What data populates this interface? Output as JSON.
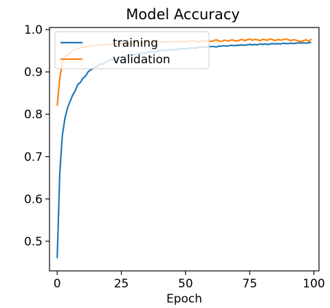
{
  "chart_data": {
    "type": "line",
    "title": "Model Accuracy",
    "xlabel": "Epoch",
    "ylabel": "",
    "xlim": [
      -3,
      102
    ],
    "ylim": [
      0.43,
      1.005
    ],
    "xticks": [
      0,
      25,
      50,
      75,
      100
    ],
    "yticks": [
      0.5,
      0.6,
      0.7,
      0.8,
      0.9,
      1.0
    ],
    "xtick_labels": [
      "0",
      "25",
      "50",
      "75",
      "100"
    ],
    "ytick_labels": [
      "0.5",
      "0.6",
      "0.7",
      "0.8",
      "0.9",
      "1.0"
    ],
    "grid": false,
    "legend_position": "upper-left",
    "x": [
      0,
      1,
      2,
      3,
      4,
      5,
      6,
      7,
      8,
      9,
      10,
      11,
      12,
      13,
      14,
      15,
      16,
      17,
      18,
      19,
      20,
      21,
      22,
      23,
      24,
      25,
      26,
      27,
      28,
      29,
      30,
      31,
      32,
      33,
      34,
      35,
      36,
      37,
      38,
      39,
      40,
      41,
      42,
      43,
      44,
      45,
      46,
      47,
      48,
      49,
      50,
      51,
      52,
      53,
      54,
      55,
      56,
      57,
      58,
      59,
      60,
      61,
      62,
      63,
      64,
      65,
      66,
      67,
      68,
      69,
      70,
      71,
      72,
      73,
      74,
      75,
      76,
      77,
      78,
      79,
      80,
      81,
      82,
      83,
      84,
      85,
      86,
      87,
      88,
      89,
      90,
      91,
      92,
      93,
      94,
      95,
      96,
      97,
      98,
      99
    ],
    "series": [
      {
        "name": "training",
        "color": "#1f77b4",
        "values": [
          0.46,
          0.66,
          0.75,
          0.79,
          0.815,
          0.83,
          0.845,
          0.855,
          0.87,
          0.875,
          0.885,
          0.89,
          0.9,
          0.905,
          0.908,
          0.912,
          0.915,
          0.92,
          0.918,
          0.924,
          0.926,
          0.93,
          0.928,
          0.932,
          0.934,
          0.936,
          0.935,
          0.938,
          0.94,
          0.941,
          0.94,
          0.943,
          0.944,
          0.945,
          0.944,
          0.946,
          0.947,
          0.948,
          0.947,
          0.949,
          0.95,
          0.951,
          0.95,
          0.952,
          0.952,
          0.953,
          0.952,
          0.954,
          0.955,
          0.955,
          0.954,
          0.956,
          0.956,
          0.957,
          0.956,
          0.958,
          0.958,
          0.959,
          0.958,
          0.96,
          0.96,
          0.96,
          0.959,
          0.961,
          0.961,
          0.962,
          0.961,
          0.962,
          0.963,
          0.962,
          0.963,
          0.963,
          0.964,
          0.963,
          0.964,
          0.965,
          0.964,
          0.965,
          0.964,
          0.966,
          0.965,
          0.966,
          0.965,
          0.966,
          0.967,
          0.966,
          0.967,
          0.966,
          0.968,
          0.967,
          0.967,
          0.968,
          0.967,
          0.968,
          0.969,
          0.968,
          0.969,
          0.968,
          0.969,
          0.97
        ]
      },
      {
        "name": "validation",
        "color": "#ff7f0e",
        "values": [
          0.82,
          0.885,
          0.92,
          0.935,
          0.94,
          0.945,
          0.95,
          0.952,
          0.955,
          0.957,
          0.958,
          0.96,
          0.96,
          0.962,
          0.961,
          0.963,
          0.964,
          0.962,
          0.965,
          0.964,
          0.966,
          0.965,
          0.967,
          0.966,
          0.965,
          0.968,
          0.967,
          0.966,
          0.969,
          0.968,
          0.967,
          0.97,
          0.969,
          0.968,
          0.97,
          0.969,
          0.971,
          0.97,
          0.969,
          0.971,
          0.97,
          0.972,
          0.97,
          0.971,
          0.972,
          0.97,
          0.971,
          0.973,
          0.971,
          0.972,
          0.971,
          0.973,
          0.972,
          0.974,
          0.972,
          0.971,
          0.973,
          0.972,
          0.974,
          0.973,
          0.972,
          0.974,
          0.976,
          0.973,
          0.972,
          0.975,
          0.974,
          0.973,
          0.976,
          0.974,
          0.973,
          0.975,
          0.977,
          0.974,
          0.976,
          0.978,
          0.975,
          0.977,
          0.976,
          0.974,
          0.977,
          0.976,
          0.975,
          0.978,
          0.976,
          0.974,
          0.977,
          0.975,
          0.976,
          0.978,
          0.976,
          0.974,
          0.976,
          0.975,
          0.973,
          0.972,
          0.974,
          0.976,
          0.972,
          0.978
        ]
      }
    ]
  }
}
